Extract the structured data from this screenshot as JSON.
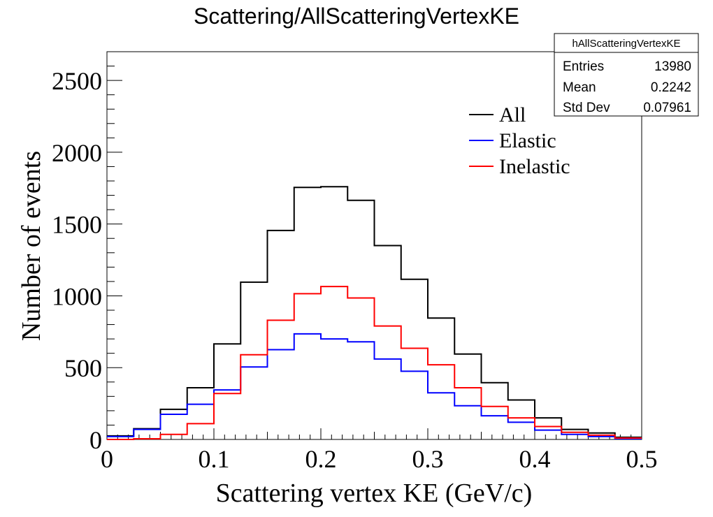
{
  "chart_data": {
    "type": "histogram",
    "title": "Scattering/AllScatteringVertexKE",
    "xlabel": "Scattering vertex KE (GeV/c)",
    "ylabel": "Number of events",
    "xlim": [
      0,
      0.5
    ],
    "ylim": [
      0,
      2700
    ],
    "x_ticks": [
      "0",
      "0.1",
      "0.2",
      "0.3",
      "0.4",
      "0.5"
    ],
    "y_ticks": [
      "0",
      "500",
      "1000",
      "1500",
      "2000",
      "2500"
    ],
    "bin_edges": [
      0,
      0.025,
      0.05,
      0.075,
      0.1,
      0.125,
      0.15,
      0.175,
      0.2,
      0.225,
      0.25,
      0.275,
      0.3,
      0.325,
      0.35,
      0.375,
      0.4,
      0.425,
      0.45,
      0.475,
      0.5
    ],
    "series": [
      {
        "name": "All",
        "color": "#000000",
        "values": [
          25,
          75,
          210,
          360,
          665,
          1095,
          1455,
          1755,
          1760,
          1665,
          1350,
          1115,
          845,
          595,
          395,
          275,
          150,
          70,
          45,
          15
        ]
      },
      {
        "name": "Elastic",
        "color": "#0000ff",
        "values": [
          20,
          70,
          175,
          245,
          345,
          505,
          625,
          735,
          700,
          680,
          560,
          475,
          325,
          235,
          165,
          120,
          65,
          35,
          20,
          5
        ]
      },
      {
        "name": "Inelastic",
        "color": "#ff0000",
        "values": [
          0,
          5,
          35,
          110,
          320,
          590,
          830,
          1015,
          1065,
          985,
          790,
          635,
          520,
          360,
          230,
          150,
          90,
          50,
          30,
          10
        ]
      }
    ],
    "legend_position": "top-right",
    "grid": false,
    "stats_box": {
      "title": "hAllScatteringVertexKE",
      "rows": [
        {
          "label": "Entries",
          "value": "13980"
        },
        {
          "label": "Mean",
          "value": "0.2242"
        },
        {
          "label": "Std Dev",
          "value": "0.07961"
        }
      ]
    }
  }
}
